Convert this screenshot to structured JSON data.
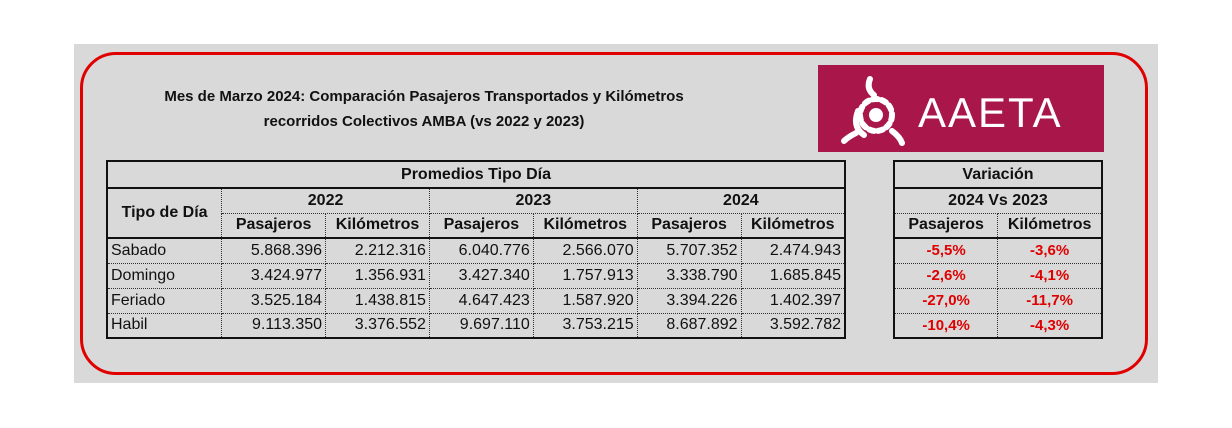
{
  "title": {
    "line1": "Mes de Marzo 2024: Comparación Pasajeros Transportados y Kilómetros",
    "line2": "recorridos Colectivos AMBA (vs 2022 y 2023)"
  },
  "logo": {
    "text": "AAETA",
    "color": "#a8164a"
  },
  "main_table": {
    "header": "Promedios  Tipo Día",
    "row_header": "Tipo de Día",
    "years": [
      "2022",
      "2023",
      "2024"
    ],
    "subcols": [
      "Pasajeros",
      "Kilómetros"
    ],
    "rows": [
      {
        "label": "Sabado",
        "values": [
          "5.868.396",
          "2.212.316",
          "6.040.776",
          "2.566.070",
          "5.707.352",
          "2.474.943"
        ]
      },
      {
        "label": "Domingo",
        "values": [
          "3.424.977",
          "1.356.931",
          "3.427.340",
          "1.757.913",
          "3.338.790",
          "1.685.845"
        ]
      },
      {
        "label": "Feriado",
        "values": [
          "3.525.184",
          "1.438.815",
          "4.647.423",
          "1.587.920",
          "3.394.226",
          "1.402.397"
        ]
      },
      {
        "label": "Habil",
        "values": [
          "9.113.350",
          "3.376.552",
          "9.697.110",
          "3.753.215",
          "8.687.892",
          "3.592.782"
        ]
      }
    ]
  },
  "variation_table": {
    "header": "Variación",
    "subheader": "2024 Vs 2023",
    "subcols": [
      "Pasajeros",
      "Kilómetros"
    ],
    "rows": [
      [
        "-5,5%",
        "-3,6%"
      ],
      [
        "-2,6%",
        "-4,1%"
      ],
      [
        "-27,0%",
        "-11,7%"
      ],
      [
        "-10,4%",
        "-4,3%"
      ]
    ],
    "negative_color": "#e00000"
  },
  "colors": {
    "frame": "#e00000",
    "background": "#d9d9d9"
  }
}
